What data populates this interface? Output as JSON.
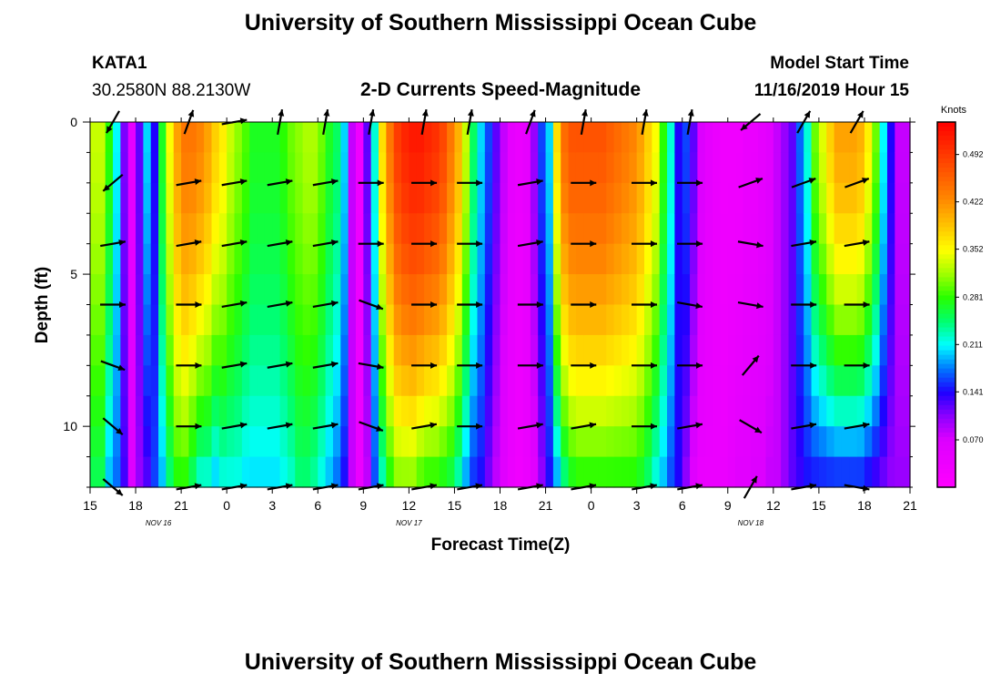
{
  "header": {
    "title": "University of Southern Mississippi Ocean Cube",
    "station_id": "KATA1",
    "coordinates": "30.2580N 88.2130W",
    "plot_subtitle": "2-D Currents Speed-Magnitude",
    "model_start_label": "Model Start Time",
    "model_start_value": "11/16/2019 Hour 15"
  },
  "footer": {
    "title": "University of Southern Mississippi Ocean Cube"
  },
  "chart_data": {
    "type": "heatmap",
    "title": "2-D Currents Speed-Magnitude",
    "xlabel": "Forecast Time(Z)",
    "ylabel": "Depth (ft)",
    "x_range_hours": [
      0,
      54
    ],
    "x_ticks": [
      {
        "h": 0,
        "label": "15"
      },
      {
        "h": 3,
        "label": "18"
      },
      {
        "h": 6,
        "label": "21"
      },
      {
        "h": 9,
        "label": "0"
      },
      {
        "h": 12,
        "label": "3"
      },
      {
        "h": 15,
        "label": "6"
      },
      {
        "h": 18,
        "label": "9"
      },
      {
        "h": 21,
        "label": "12"
      },
      {
        "h": 24,
        "label": "15"
      },
      {
        "h": 27,
        "label": "18"
      },
      {
        "h": 30,
        "label": "21"
      },
      {
        "h": 33,
        "label": "0"
      },
      {
        "h": 36,
        "label": "3"
      },
      {
        "h": 39,
        "label": "6"
      },
      {
        "h": 42,
        "label": "9"
      },
      {
        "h": 45,
        "label": "12"
      },
      {
        "h": 48,
        "label": "15"
      },
      {
        "h": 51,
        "label": "18"
      },
      {
        "h": 54,
        "label": "21"
      }
    ],
    "date_labels": [
      {
        "h": 4.5,
        "label": "NOV 16"
      },
      {
        "h": 21,
        "label": "NOV 17"
      },
      {
        "h": 43.5,
        "label": "NOV 18"
      }
    ],
    "y_range_ft": [
      0,
      12
    ],
    "y_ticks": [
      {
        "d": 0,
        "label": "0"
      },
      {
        "d": 5,
        "label": "5"
      },
      {
        "d": 10,
        "label": "10"
      }
    ],
    "colorbar": {
      "units": "Knots",
      "range": [
        0.0,
        0.54
      ],
      "labels": [
        "0.492",
        "0.422",
        "0.352",
        "0.281",
        "0.211",
        "0.141",
        "0.070"
      ]
    },
    "depth_levels_ft": [
      0,
      2,
      4,
      6,
      8,
      10,
      12
    ],
    "column_speed_profiles_knots": [
      {
        "t": 0.0,
        "surface": 0.33,
        "bottom": 0.25
      },
      {
        "t": 0.5,
        "surface": 0.33,
        "bottom": 0.25
      },
      {
        "t": 1.0,
        "surface": 0.28,
        "bottom": 0.19
      },
      {
        "t": 1.5,
        "surface": 0.21,
        "bottom": 0.17
      },
      {
        "t": 2.0,
        "surface": 0.11,
        "bottom": 0.13
      },
      {
        "t": 2.5,
        "surface": 0.05,
        "bottom": 0.07
      },
      {
        "t": 3.0,
        "surface": 0.12,
        "bottom": 0.1
      },
      {
        "t": 3.5,
        "surface": 0.2,
        "bottom": 0.12
      },
      {
        "t": 4.0,
        "surface": 0.14,
        "bottom": 0.16
      },
      {
        "t": 4.5,
        "surface": 0.27,
        "bottom": 0.19
      },
      {
        "t": 5.0,
        "surface": 0.35,
        "bottom": 0.24
      },
      {
        "t": 5.5,
        "surface": 0.41,
        "bottom": 0.27
      },
      {
        "t": 6.0,
        "surface": 0.44,
        "bottom": 0.27
      },
      {
        "t": 6.5,
        "surface": 0.44,
        "bottom": 0.24
      },
      {
        "t": 7.0,
        "surface": 0.43,
        "bottom": 0.21
      },
      {
        "t": 7.5,
        "surface": 0.41,
        "bottom": 0.21
      },
      {
        "t": 8.0,
        "surface": 0.38,
        "bottom": 0.19
      },
      {
        "t": 8.5,
        "surface": 0.36,
        "bottom": 0.21
      },
      {
        "t": 9.0,
        "surface": 0.33,
        "bottom": 0.21
      },
      {
        "t": 9.5,
        "surface": 0.31,
        "bottom": 0.21
      },
      {
        "t": 10.0,
        "surface": 0.29,
        "bottom": 0.2
      },
      {
        "t": 10.5,
        "surface": 0.27,
        "bottom": 0.2
      },
      {
        "t": 11.0,
        "surface": 0.27,
        "bottom": 0.2
      },
      {
        "t": 11.5,
        "surface": 0.27,
        "bottom": 0.2
      },
      {
        "t": 12.0,
        "surface": 0.27,
        "bottom": 0.2
      },
      {
        "t": 12.5,
        "surface": 0.28,
        "bottom": 0.21
      },
      {
        "t": 13.0,
        "surface": 0.3,
        "bottom": 0.22
      },
      {
        "t": 13.5,
        "surface": 0.31,
        "bottom": 0.24
      },
      {
        "t": 14.0,
        "surface": 0.32,
        "bottom": 0.24
      },
      {
        "t": 14.5,
        "surface": 0.32,
        "bottom": 0.23
      },
      {
        "t": 15.0,
        "surface": 0.3,
        "bottom": 0.21
      },
      {
        "t": 15.5,
        "surface": 0.27,
        "bottom": 0.19
      },
      {
        "t": 16.0,
        "surface": 0.25,
        "bottom": 0.17
      },
      {
        "t": 16.5,
        "surface": 0.2,
        "bottom": 0.14
      },
      {
        "t": 17.0,
        "surface": 0.08,
        "bottom": 0.08
      },
      {
        "t": 17.5,
        "surface": 0.03,
        "bottom": 0.04
      },
      {
        "t": 18.0,
        "surface": 0.12,
        "bottom": 0.08
      },
      {
        "t": 18.5,
        "surface": 0.22,
        "bottom": 0.16
      },
      {
        "t": 19.0,
        "surface": 0.37,
        "bottom": 0.22
      },
      {
        "t": 19.5,
        "surface": 0.44,
        "bottom": 0.27
      },
      {
        "t": 20.0,
        "surface": 0.49,
        "bottom": 0.3
      },
      {
        "t": 20.5,
        "surface": 0.51,
        "bottom": 0.3
      },
      {
        "t": 21.0,
        "surface": 0.52,
        "bottom": 0.3
      },
      {
        "t": 21.5,
        "surface": 0.52,
        "bottom": 0.28
      },
      {
        "t": 22.0,
        "surface": 0.51,
        "bottom": 0.27
      },
      {
        "t": 22.5,
        "surface": 0.5,
        "bottom": 0.27
      },
      {
        "t": 23.0,
        "surface": 0.48,
        "bottom": 0.26
      },
      {
        "t": 23.5,
        "surface": 0.44,
        "bottom": 0.25
      },
      {
        "t": 24.0,
        "surface": 0.4,
        "bottom": 0.22
      },
      {
        "t": 24.5,
        "surface": 0.33,
        "bottom": 0.18
      },
      {
        "t": 25.0,
        "surface": 0.25,
        "bottom": 0.15
      },
      {
        "t": 25.5,
        "surface": 0.2,
        "bottom": 0.14
      },
      {
        "t": 26.0,
        "surface": 0.16,
        "bottom": 0.11
      },
      {
        "t": 26.5,
        "surface": 0.12,
        "bottom": 0.08
      },
      {
        "t": 27.0,
        "surface": 0.08,
        "bottom": 0.06
      },
      {
        "t": 27.5,
        "surface": 0.05,
        "bottom": 0.04
      },
      {
        "t": 28.0,
        "surface": 0.04,
        "bottom": 0.03
      },
      {
        "t": 28.5,
        "surface": 0.05,
        "bottom": 0.04
      },
      {
        "t": 29.0,
        "surface": 0.1,
        "bottom": 0.06
      },
      {
        "t": 29.5,
        "surface": 0.16,
        "bottom": 0.1
      },
      {
        "t": 30.0,
        "surface": 0.2,
        "bottom": 0.14
      },
      {
        "t": 30.5,
        "surface": 0.37,
        "bottom": 0.18
      },
      {
        "t": 31.0,
        "surface": 0.45,
        "bottom": 0.23
      },
      {
        "t": 31.5,
        "surface": 0.47,
        "bottom": 0.26
      },
      {
        "t": 32.0,
        "surface": 0.47,
        "bottom": 0.27
      },
      {
        "t": 32.5,
        "surface": 0.47,
        "bottom": 0.27
      },
      {
        "t": 33.0,
        "surface": 0.47,
        "bottom": 0.27
      },
      {
        "t": 33.5,
        "surface": 0.47,
        "bottom": 0.27
      },
      {
        "t": 34.0,
        "surface": 0.46,
        "bottom": 0.27
      },
      {
        "t": 34.5,
        "surface": 0.45,
        "bottom": 0.27
      },
      {
        "t": 35.0,
        "surface": 0.44,
        "bottom": 0.27
      },
      {
        "t": 35.5,
        "surface": 0.43,
        "bottom": 0.27
      },
      {
        "t": 36.0,
        "surface": 0.41,
        "bottom": 0.26
      },
      {
        "t": 36.5,
        "surface": 0.38,
        "bottom": 0.24
      },
      {
        "t": 37.0,
        "surface": 0.35,
        "bottom": 0.21
      },
      {
        "t": 37.5,
        "surface": 0.28,
        "bottom": 0.19
      },
      {
        "t": 38.0,
        "surface": 0.22,
        "bottom": 0.16
      },
      {
        "t": 38.5,
        "surface": 0.14,
        "bottom": 0.14
      },
      {
        "t": 39.0,
        "surface": 0.16,
        "bottom": 0.1
      },
      {
        "t": 39.5,
        "surface": 0.12,
        "bottom": 0.06
      },
      {
        "t": 40.0,
        "surface": 0.07,
        "bottom": 0.04
      },
      {
        "t": 40.5,
        "surface": 0.05,
        "bottom": 0.04
      },
      {
        "t": 41.0,
        "surface": 0.04,
        "bottom": 0.04
      },
      {
        "t": 41.5,
        "surface": 0.03,
        "bottom": 0.04
      },
      {
        "t": 42.0,
        "surface": 0.03,
        "bottom": 0.05
      },
      {
        "t": 42.5,
        "surface": 0.03,
        "bottom": 0.06
      },
      {
        "t": 43.0,
        "surface": 0.04,
        "bottom": 0.06
      },
      {
        "t": 43.5,
        "surface": 0.04,
        "bottom": 0.07
      },
      {
        "t": 44.0,
        "surface": 0.05,
        "bottom": 0.07
      },
      {
        "t": 44.5,
        "surface": 0.06,
        "bottom": 0.08
      },
      {
        "t": 45.0,
        "surface": 0.08,
        "bottom": 0.08
      },
      {
        "t": 45.5,
        "surface": 0.1,
        "bottom": 0.1
      },
      {
        "t": 46.0,
        "surface": 0.12,
        "bottom": 0.12
      },
      {
        "t": 46.5,
        "surface": 0.17,
        "bottom": 0.13
      },
      {
        "t": 47.0,
        "surface": 0.22,
        "bottom": 0.14
      },
      {
        "t": 47.5,
        "surface": 0.3,
        "bottom": 0.14
      },
      {
        "t": 48.0,
        "surface": 0.34,
        "bottom": 0.14
      },
      {
        "t": 48.5,
        "surface": 0.38,
        "bottom": 0.14
      },
      {
        "t": 49.0,
        "surface": 0.41,
        "bottom": 0.14
      },
      {
        "t": 49.5,
        "surface": 0.41,
        "bottom": 0.14
      },
      {
        "t": 50.0,
        "surface": 0.41,
        "bottom": 0.14
      },
      {
        "t": 50.5,
        "surface": 0.4,
        "bottom": 0.14
      },
      {
        "t": 51.0,
        "surface": 0.36,
        "bottom": 0.13
      },
      {
        "t": 51.5,
        "surface": 0.3,
        "bottom": 0.12
      },
      {
        "t": 52.0,
        "surface": 0.21,
        "bottom": 0.11
      },
      {
        "t": 52.5,
        "surface": 0.14,
        "bottom": 0.1
      },
      {
        "t": 53.0,
        "surface": 0.08,
        "bottom": 0.1
      },
      {
        "t": 53.5,
        "surface": 0.08,
        "bottom": 0.1
      }
    ],
    "vector_times_h": [
      1.5,
      6.5,
      9.5,
      12.5,
      15.5,
      18.5,
      22,
      25,
      29,
      32.5,
      36.5,
      39.5,
      43.5,
      47,
      50.5
    ],
    "vector_directions_deg": [
      [
        240,
        70,
        10,
        80,
        80,
        80,
        80,
        80,
        70,
        80,
        80,
        80,
        220,
        60,
        60
      ],
      [
        220,
        10,
        10,
        10,
        10,
        0,
        0,
        0,
        10,
        0,
        0,
        0,
        20,
        20,
        20
      ],
      [
        10,
        10,
        10,
        10,
        10,
        0,
        0,
        0,
        10,
        0,
        0,
        0,
        350,
        10,
        10
      ],
      [
        0,
        0,
        10,
        10,
        10,
        340,
        0,
        0,
        0,
        0,
        0,
        350,
        350,
        0,
        0
      ],
      [
        340,
        0,
        10,
        10,
        10,
        350,
        0,
        0,
        0,
        0,
        0,
        0,
        50,
        0,
        0
      ],
      [
        320,
        0,
        10,
        10,
        10,
        340,
        10,
        0,
        10,
        10,
        0,
        10,
        330,
        10,
        10
      ],
      [
        320,
        10,
        10,
        10,
        10,
        10,
        10,
        10,
        10,
        10,
        10,
        10,
        60,
        10,
        350
      ]
    ]
  }
}
